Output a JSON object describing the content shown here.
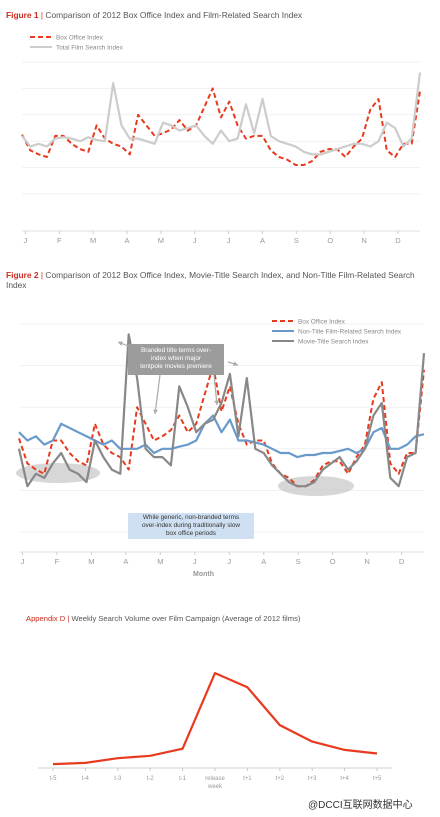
{
  "watermark": "@DCCI互联网数据中心",
  "colors": {
    "red": "#e83a1f",
    "lightgray": "#cccccc",
    "blue": "#6a99cc",
    "darkgray": "#888888",
    "accent": "#cc2b1f"
  },
  "figure1": {
    "label": "Figure 1",
    "sep": "|",
    "title": "Comparison of 2012 Box Office Index and Film-Related Search Index"
  },
  "figure2": {
    "label": "Figure 2",
    "sep": "|",
    "title": "Comparison of 2012 Box Office Index, Movie-Title Search Index, and Non-Title Film-Related Search Index",
    "annotation_top": [
      "Branded title terms over-",
      "index when major",
      "tentpole movies premiere"
    ],
    "annotation_bottom": [
      "While generic, non-branded terms",
      "over-index during traditionally slow",
      "box office periods"
    ]
  },
  "figure3": {
    "label": "Appendix D",
    "sep": "|",
    "title": "Weekly Search Volume over Film Campaign (Average of 2012 films)"
  },
  "chart_data": [
    {
      "type": "line",
      "title": "Comparison of 2012 Box Office Index and Film-Related Search Index",
      "xlabel": "",
      "ylabel": "",
      "x_ticks": [
        "J",
        "F",
        "M",
        "A",
        "M",
        "J",
        "J",
        "A",
        "S",
        "O",
        "N",
        "D"
      ],
      "ylim": [
        0,
        100
      ],
      "grid": true,
      "legend": "top-left",
      "series": [
        {
          "name": "Box Office Index",
          "color": "#e83a1f",
          "dash": true,
          "values": [
            45,
            33,
            30,
            28,
            44,
            44,
            38,
            34,
            32,
            52,
            42,
            38,
            36,
            30,
            60,
            52,
            44,
            46,
            49,
            56,
            48,
            52,
            66,
            80,
            58,
            70,
            52,
            42,
            44,
            44,
            33,
            28,
            26,
            22,
            22,
            25,
            32,
            34,
            34,
            28,
            36,
            42,
            64,
            72,
            33,
            28,
            38,
            38,
            78
          ]
        },
        {
          "name": "Total Film Search Index",
          "color": "#cccccc",
          "dash": false,
          "values": [
            44,
            36,
            38,
            36,
            42,
            43,
            42,
            40,
            43,
            41,
            40,
            84,
            52,
            42,
            42,
            40,
            38,
            54,
            52,
            48,
            50,
            52,
            44,
            38,
            48,
            40,
            42,
            68,
            46,
            72,
            44,
            40,
            38,
            36,
            32,
            30,
            30,
            32,
            34,
            36,
            38,
            38,
            36,
            40,
            54,
            50,
            36,
            42,
            92
          ]
        }
      ]
    },
    {
      "type": "line",
      "title": "Comparison of 2012 Box Office Index, Movie-Title Search Index, and Non-Title Film-Related Search Index",
      "xlabel": "Month",
      "ylabel": "",
      "x_ticks": [
        "J",
        "F",
        "M",
        "A",
        "M",
        "J",
        "J",
        "A",
        "S",
        "O",
        "N",
        "D"
      ],
      "ylim": [
        0,
        100
      ],
      "grid": true,
      "legend": "top-right",
      "series": [
        {
          "name": "Box Office Index",
          "color": "#e83a1f",
          "dash": true,
          "values": [
            45,
            33,
            30,
            28,
            44,
            44,
            38,
            34,
            32,
            52,
            42,
            38,
            36,
            30,
            60,
            52,
            44,
            46,
            49,
            56,
            48,
            52,
            66,
            80,
            58,
            70,
            52,
            42,
            44,
            44,
            33,
            28,
            26,
            22,
            22,
            25,
            32,
            34,
            34,
            28,
            36,
            42,
            64,
            72,
            33,
            28,
            38,
            38,
            78
          ]
        },
        {
          "name": "Non-Title Film-Related Search Index",
          "color": "#6a99cc",
          "dash": false,
          "values": [
            48,
            44,
            46,
            42,
            44,
            52,
            50,
            48,
            46,
            44,
            42,
            44,
            40,
            40,
            40,
            42,
            38,
            40,
            40,
            41,
            42,
            44,
            52,
            56,
            48,
            54,
            44,
            44,
            43,
            42,
            40,
            38,
            38,
            36,
            37,
            37,
            38,
            38,
            39,
            40,
            38,
            40,
            48,
            50,
            40,
            40,
            42,
            46,
            47
          ]
        },
        {
          "name": "Movie-Title Search Index",
          "color": "#888888",
          "dash": false,
          "values": [
            40,
            22,
            28,
            26,
            33,
            38,
            30,
            28,
            24,
            44,
            36,
            30,
            28,
            95,
            74,
            40,
            36,
            36,
            32,
            70,
            60,
            48,
            52,
            54,
            62,
            76,
            46,
            74,
            40,
            38,
            32,
            28,
            24,
            22,
            22,
            24,
            30,
            33,
            36,
            30,
            34,
            40,
            56,
            62,
            26,
            22,
            36,
            38,
            86
          ]
        }
      ]
    },
    {
      "type": "line",
      "title": "Weekly Search Volume over Film Campaign (Average of 2012 films)",
      "xlabel": "",
      "ylabel": "",
      "categories": [
        "t-5",
        "t-4",
        "t-3",
        "t-2",
        "t-1",
        "release week",
        "t+1",
        "t+2",
        "t+3",
        "t+4",
        "t+5"
      ],
      "ylim": [
        0,
        110
      ],
      "grid": false,
      "series": [
        {
          "name": "",
          "color": "#e83a1f",
          "dash": false,
          "values": [
            5,
            6,
            10,
            12,
            18,
            82,
            70,
            38,
            24,
            17,
            14
          ]
        }
      ]
    }
  ]
}
